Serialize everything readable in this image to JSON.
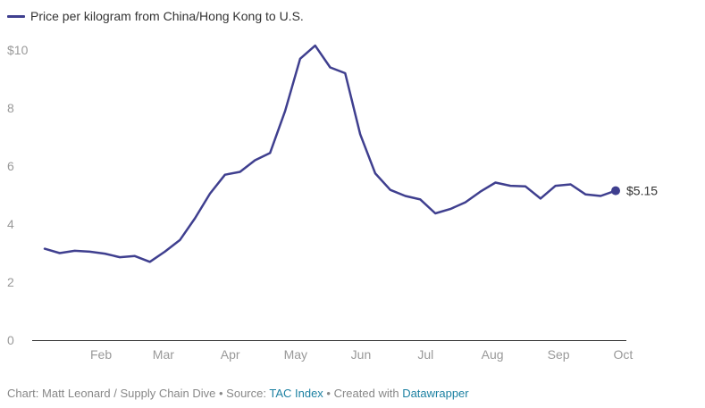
{
  "chart_data": {
    "type": "line",
    "legend": "Price per kilogram from China/Hong Kong to U.S.",
    "series": [
      {
        "name": "Price per kilogram from China/Hong Kong to U.S.",
        "values": [
          3.15,
          3.0,
          3.08,
          3.05,
          2.98,
          2.86,
          2.9,
          2.7,
          3.05,
          3.45,
          4.2,
          5.05,
          5.7,
          5.8,
          6.2,
          6.45,
          7.9,
          9.7,
          10.15,
          9.4,
          9.2,
          7.1,
          5.75,
          5.18,
          4.97,
          4.85,
          4.37,
          4.52,
          4.75,
          5.12,
          5.43,
          5.32,
          5.3,
          4.88,
          5.32,
          5.37,
          5.02,
          4.97,
          5.15
        ]
      }
    ],
    "x_start_week": 0,
    "x_end_week": 38,
    "x_ticks": [
      {
        "label": "Feb",
        "week": 3.75
      },
      {
        "label": "Mar",
        "week": 7.9
      },
      {
        "label": "Apr",
        "week": 12.35
      },
      {
        "label": "May",
        "week": 16.7
      },
      {
        "label": "Jun",
        "week": 21.05
      },
      {
        "label": "Jul",
        "week": 25.35
      },
      {
        "label": "Aug",
        "week": 29.8
      },
      {
        "label": "Sep",
        "week": 34.2
      },
      {
        "label": "Oct",
        "week": 38.5
      }
    ],
    "y_ticks": [
      {
        "value": 0,
        "label": "0"
      },
      {
        "value": 2,
        "label": "2"
      },
      {
        "value": 4,
        "label": "4"
      },
      {
        "value": 6,
        "label": "6"
      },
      {
        "value": 8,
        "label": "8"
      },
      {
        "value": 10,
        "label": "$10"
      }
    ],
    "ylim": [
      0,
      10
    ],
    "end_label": "$5.15",
    "line_color": "#3f3f8f",
    "grid": false
  },
  "footer": {
    "prefix": "Chart: Matt Leonard / Supply Chain Dive • Source: ",
    "source_link": "TAC Index",
    "middle": " • Created with ",
    "tool_link": "Datawrapper"
  }
}
